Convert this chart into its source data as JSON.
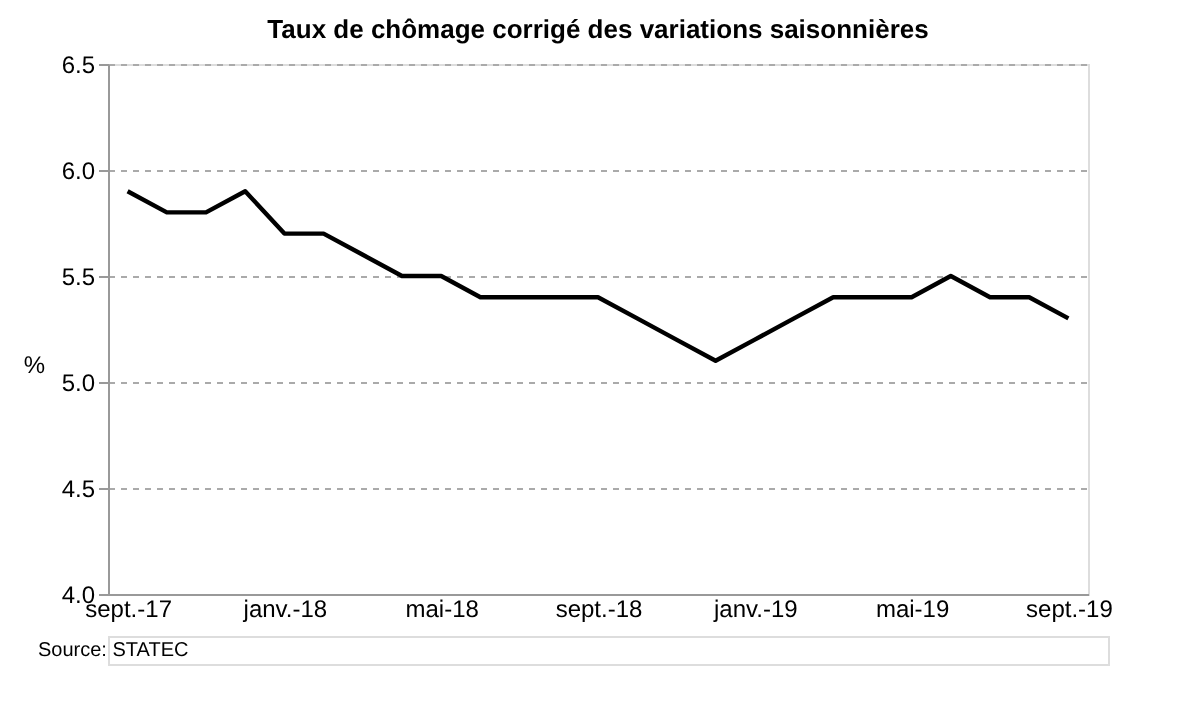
{
  "chart_data": {
    "type": "line",
    "title": "Taux de chômage corrigé des variations saisonnières",
    "ylabel": "%",
    "categories": [
      "sept.-17",
      null,
      null,
      null,
      "janv.-18",
      null,
      null,
      null,
      "mai-18",
      null,
      null,
      null,
      "sept.-18",
      null,
      null,
      null,
      "janv.-19",
      null,
      null,
      null,
      "mai-19",
      null,
      null,
      null,
      "sept.-19"
    ],
    "series": [
      {
        "color": "#000000",
        "values": [
          5.9,
          5.8,
          5.8,
          5.9,
          5.7,
          5.7,
          5.6,
          5.5,
          5.5,
          5.4,
          5.4,
          5.4,
          5.4,
          5.3,
          5.2,
          5.1,
          5.2,
          5.3,
          5.4,
          5.4,
          5.4,
          5.5,
          5.4,
          5.4,
          5.3
        ]
      }
    ],
    "ylim": [
      4.0,
      6.5
    ],
    "yticks": [
      {
        "value": 4,
        "label": "4.0"
      },
      4.5,
      {
        "value": 5,
        "label": "5.0"
      },
      5.5,
      {
        "value": 6,
        "label": "6.0"
      },
      6.5
    ],
    "grid": "y",
    "marker": "none",
    "line_style": "solid",
    "annotations": [
      "Source: STATEC"
    ]
  }
}
